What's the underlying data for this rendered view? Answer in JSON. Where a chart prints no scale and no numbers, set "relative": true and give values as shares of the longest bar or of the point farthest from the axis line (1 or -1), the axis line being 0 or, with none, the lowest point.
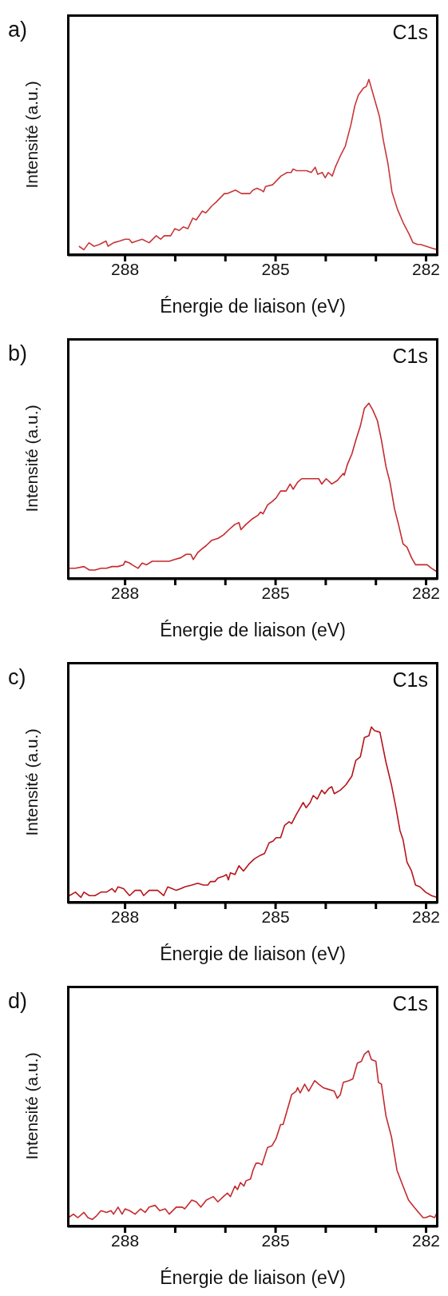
{
  "chart_data": [
    {
      "type": "line",
      "title": "a)",
      "xlabel": "Énergie de liaison (eV)",
      "ylabel": "Intensité (a.u.)",
      "annotations": [
        "C1s"
      ],
      "relative": true,
      "color": "#c8383a",
      "xlim": [
        289.14,
        281.77
      ],
      "xticks": [
        288,
        {
          "value": 287,
          "label": null
        },
        {
          "value": 286,
          "label": null
        },
        285,
        {
          "value": 284,
          "label": null
        },
        {
          "value": 283,
          "label": null
        },
        282
      ],
      "x": [
        288.92,
        288.82,
        288.72,
        288.62,
        288.51,
        288.38,
        288.34,
        288.23,
        288.11,
        288.0,
        287.92,
        287.86,
        287.77,
        287.66,
        287.52,
        287.38,
        287.29,
        287.22,
        287.09,
        287.01,
        286.92,
        286.84,
        286.75,
        286.65,
        286.58,
        286.46,
        286.39,
        286.27,
        286.19,
        286.02,
        285.96,
        285.8,
        285.68,
        285.51,
        285.45,
        285.37,
        285.29,
        285.24,
        285.2,
        285.06,
        284.89,
        284.77,
        284.69,
        284.65,
        284.58,
        284.46,
        284.38,
        284.29,
        284.21,
        284.16,
        284.07,
        284.01,
        283.95,
        283.87,
        283.81,
        283.7,
        283.61,
        283.5,
        283.42,
        283.35,
        283.25,
        283.19,
        283.14,
        283.05,
        282.93,
        282.85,
        282.76,
        282.68,
        282.57,
        282.45,
        282.34,
        282.26,
        282.17,
        282.11,
        282.0,
        281.89,
        281.77
      ],
      "values": [
        0.05,
        0.03,
        0.07,
        0.05,
        0.06,
        0.08,
        0.05,
        0.07,
        0.08,
        0.09,
        0.09,
        0.07,
        0.08,
        0.09,
        0.07,
        0.11,
        0.09,
        0.11,
        0.11,
        0.15,
        0.14,
        0.16,
        0.15,
        0.21,
        0.2,
        0.25,
        0.24,
        0.28,
        0.3,
        0.35,
        0.35,
        0.37,
        0.35,
        0.35,
        0.37,
        0.38,
        0.37,
        0.36,
        0.39,
        0.4,
        0.45,
        0.47,
        0.47,
        0.49,
        0.48,
        0.48,
        0.48,
        0.47,
        0.5,
        0.46,
        0.47,
        0.44,
        0.47,
        0.45,
        0.5,
        0.57,
        0.62,
        0.74,
        0.85,
        0.91,
        0.95,
        0.96,
        1,
        0.91,
        0.79,
        0.65,
        0.52,
        0.36,
        0.26,
        0.18,
        0.12,
        0.07,
        0.06,
        0.06,
        0.05,
        0.04,
        0.03
      ]
    },
    {
      "type": "line",
      "title": "b)",
      "xlabel": "Énergie de liaison (eV)",
      "ylabel": "Intensité (a.u.)",
      "annotations": [
        "C1s"
      ],
      "relative": true,
      "color": "#c42a2e",
      "xlim": [
        289.14,
        281.77
      ],
      "xticks": [
        288,
        {
          "value": 287,
          "label": null
        },
        {
          "value": 286,
          "label": null
        },
        285,
        {
          "value": 284,
          "label": null
        },
        {
          "value": 283,
          "label": null
        },
        282
      ],
      "x": [
        289.11,
        288.99,
        288.82,
        288.71,
        288.6,
        288.48,
        288.37,
        288.26,
        288.14,
        288.03,
        288.0,
        287.91,
        287.86,
        287.74,
        287.66,
        287.57,
        287.46,
        287.35,
        287.23,
        287.12,
        287.01,
        286.89,
        286.78,
        286.69,
        286.64,
        286.55,
        286.47,
        286.38,
        286.27,
        286.15,
        286.04,
        285.93,
        285.81,
        285.73,
        285.69,
        285.59,
        285.47,
        285.36,
        285.3,
        285.25,
        285.16,
        285.07,
        284.99,
        284.9,
        284.79,
        284.71,
        284.65,
        284.56,
        284.48,
        284.39,
        284.31,
        284.22,
        284.14,
        284.08,
        283.99,
        283.88,
        283.77,
        283.65,
        283.63,
        283.57,
        283.48,
        283.4,
        283.31,
        283.23,
        283.14,
        283.06,
        282.97,
        282.89,
        282.8,
        282.72,
        282.63,
        282.55,
        282.46,
        282.38,
        282.29,
        282.21,
        282.12,
        282.06,
        281.98,
        281.89,
        281.78
      ],
      "values": [
        0.06,
        0.06,
        0.07,
        0.05,
        0.05,
        0.06,
        0.06,
        0.07,
        0.07,
        0.08,
        0.1,
        0.09,
        0.08,
        0.06,
        0.09,
        0.08,
        0.1,
        0.1,
        0.1,
        0.1,
        0.11,
        0.12,
        0.14,
        0.14,
        0.11,
        0.15,
        0.17,
        0.19,
        0.22,
        0.23,
        0.25,
        0.28,
        0.31,
        0.32,
        0.28,
        0.31,
        0.34,
        0.36,
        0.38,
        0.37,
        0.42,
        0.44,
        0.46,
        0.5,
        0.5,
        0.54,
        0.51,
        0.55,
        0.57,
        0.57,
        0.57,
        0.57,
        0.57,
        0.54,
        0.57,
        0.54,
        0.56,
        0.6,
        0.59,
        0.65,
        0.71,
        0.79,
        0.87,
        0.97,
        1,
        0.96,
        0.9,
        0.79,
        0.64,
        0.55,
        0.4,
        0.31,
        0.2,
        0.18,
        0.12,
        0.08,
        0.08,
        0.08,
        0.08,
        0.06,
        0.04
      ]
    },
    {
      "type": "line",
      "title": "c)",
      "xlabel": "Énergie de liaison (eV)",
      "ylabel": "Intensité (a.u.)",
      "annotations": [
        "C1s"
      ],
      "relative": true,
      "color": "#b5151b",
      "xlim": [
        289.14,
        281.77
      ],
      "xticks": [
        288,
        {
          "value": 287,
          "label": null
        },
        {
          "value": 286,
          "label": null
        },
        285,
        {
          "value": 284,
          "label": null
        },
        {
          "value": 283,
          "label": null
        },
        282
      ],
      "x": [
        289.11,
        288.99,
        288.88,
        288.82,
        288.71,
        288.6,
        288.48,
        288.37,
        288.26,
        288.2,
        288.14,
        288.03,
        287.91,
        287.8,
        287.69,
        287.63,
        287.52,
        287.35,
        287.23,
        287.15,
        287.06,
        286.98,
        286.89,
        286.81,
        286.67,
        286.55,
        286.44,
        286.35,
        286.3,
        286.21,
        286.15,
        286.04,
        285.98,
        285.94,
        285.9,
        285.81,
        285.73,
        285.64,
        285.53,
        285.42,
        285.3,
        285.22,
        285.13,
        285.05,
        284.99,
        284.9,
        284.82,
        284.73,
        284.68,
        284.59,
        284.51,
        284.45,
        284.39,
        284.31,
        284.25,
        284.17,
        284.08,
        284.02,
        283.94,
        283.88,
        283.83,
        283.71,
        283.6,
        283.48,
        283.4,
        283.31,
        283.23,
        283.14,
        283.09,
        283.03,
        282.92,
        282.8,
        282.69,
        282.6,
        282.52,
        282.46,
        282.38,
        282.29,
        282.21,
        282.12,
        282.01,
        281.89,
        281.78
      ],
      "values": [
        0.04,
        0.06,
        0.03,
        0.06,
        0.04,
        0.04,
        0.06,
        0.06,
        0.08,
        0.06,
        0.09,
        0.08,
        0.04,
        0.07,
        0.07,
        0.04,
        0.07,
        0.07,
        0.04,
        0.09,
        0.08,
        0.07,
        0.08,
        0.09,
        0.1,
        0.11,
        0.1,
        0.1,
        0.12,
        0.12,
        0.14,
        0.15,
        0.16,
        0.13,
        0.17,
        0.16,
        0.21,
        0.18,
        0.22,
        0.25,
        0.27,
        0.28,
        0.34,
        0.35,
        0.37,
        0.37,
        0.44,
        0.46,
        0.45,
        0.5,
        0.54,
        0.57,
        0.54,
        0.57,
        0.61,
        0.59,
        0.64,
        0.62,
        0.65,
        0.66,
        0.62,
        0.64,
        0.67,
        0.72,
        0.81,
        0.83,
        0.94,
        0.95,
        1,
        0.98,
        0.97,
        0.8,
        0.67,
        0.54,
        0.41,
        0.36,
        0.23,
        0.18,
        0.1,
        0.09,
        0.06,
        0.04,
        0.03
      ]
    },
    {
      "type": "line",
      "title": "d)",
      "xlabel": "Énergie de liaison (eV)",
      "ylabel": "Intensité (a.u.)",
      "annotations": [
        "C1s"
      ],
      "relative": true,
      "color": "#c42a2e",
      "xlim": [
        289.14,
        281.77
      ],
      "xticks": [
        288,
        {
          "value": 287,
          "label": null
        },
        {
          "value": 286,
          "label": null
        },
        285,
        {
          "value": 284,
          "label": null
        },
        {
          "value": 283,
          "label": null
        },
        282
      ],
      "x": [
        289.13,
        289.03,
        288.94,
        288.82,
        288.74,
        288.65,
        288.57,
        288.48,
        288.37,
        288.28,
        288.23,
        288.14,
        288.06,
        288.0,
        287.91,
        287.8,
        287.69,
        287.6,
        287.52,
        287.4,
        287.31,
        287.2,
        287.12,
        286.98,
        286.86,
        286.81,
        286.67,
        286.58,
        286.49,
        286.38,
        286.24,
        286.15,
        286.04,
        285.96,
        285.9,
        285.81,
        285.76,
        285.7,
        285.63,
        285.59,
        285.5,
        285.45,
        285.39,
        285.33,
        285.27,
        285.16,
        285.07,
        284.99,
        284.9,
        284.85,
        284.68,
        284.59,
        284.56,
        284.51,
        284.42,
        284.34,
        284.22,
        284.14,
        284.05,
        283.94,
        283.83,
        283.77,
        283.71,
        283.65,
        283.54,
        283.46,
        283.37,
        283.29,
        283.23,
        283.15,
        283.09,
        283.0,
        282.95,
        282.89,
        282.8,
        282.69,
        282.58,
        282.46,
        282.35,
        282.24,
        282.15,
        282.06,
        282.01,
        281.92,
        281.83,
        281.78
      ],
      "values": [
        0.05,
        0.07,
        0.05,
        0.08,
        0.05,
        0.04,
        0.06,
        0.09,
        0.08,
        0.09,
        0.07,
        0.11,
        0.07,
        0.1,
        0.09,
        0.07,
        0.1,
        0.08,
        0.11,
        0.12,
        0.09,
        0.1,
        0.07,
        0.11,
        0.11,
        0.1,
        0.15,
        0.14,
        0.11,
        0.15,
        0.17,
        0.14,
        0.17,
        0.19,
        0.17,
        0.23,
        0.21,
        0.25,
        0.23,
        0.26,
        0.27,
        0.32,
        0.36,
        0.36,
        0.35,
        0.45,
        0.46,
        0.5,
        0.58,
        0.58,
        0.75,
        0.77,
        0.79,
        0.76,
        0.81,
        0.77,
        0.83,
        0.81,
        0.79,
        0.78,
        0.77,
        0.73,
        0.75,
        0.82,
        0.83,
        0.84,
        0.93,
        0.94,
        0.98,
        1,
        0.95,
        0.94,
        0.82,
        0.81,
        0.63,
        0.51,
        0.32,
        0.23,
        0.15,
        0.11,
        0.08,
        0.05,
        0.05,
        0.06,
        0.05,
        0.08
      ]
    }
  ]
}
